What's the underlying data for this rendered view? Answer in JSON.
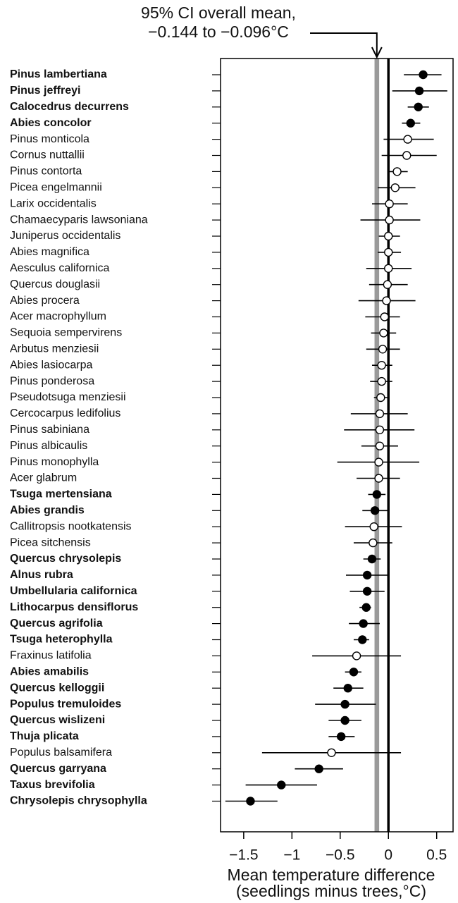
{
  "chart_data": {
    "type": "forest",
    "annotation": [
      "95% CI overall mean,",
      "−0.144 to −0.096°C"
    ],
    "overall_ci": [
      -0.144,
      -0.096
    ],
    "reference_x": 0,
    "xlabel": [
      "Mean temperature difference",
      "(seedlings minus trees,°C)"
    ],
    "categories": [
      "Pinus lambertiana",
      "Pinus jeffreyi",
      "Calocedrus decurrens",
      "Abies concolor",
      "Pinus monticola",
      "Cornus nuttallii",
      "Pinus contorta",
      "Picea engelmannii",
      "Larix occidentalis",
      "Chamaecyparis lawsoniana",
      "Juniperus occidentalis",
      "Abies magnifica",
      "Aesculus californica",
      "Quercus douglasii",
      "Abies procera",
      "Acer macrophyllum",
      "Sequoia sempervirens",
      "Arbutus menziesii",
      "Abies lasiocarpa",
      "Pinus ponderosa",
      "Pseudotsuga menziesii",
      "Cercocarpus ledifolius",
      "Pinus sabiniana",
      "Pinus albicaulis",
      "Pinus monophylla",
      "Acer glabrum",
      "Tsuga mertensiana",
      "Abies grandis",
      "Callitropsis nootkatensis",
      "Picea sitchensis",
      "Quercus chrysolepis",
      "Alnus rubra",
      "Umbellularia californica",
      "Lithocarpus densiflorus",
      "Quercus agrifolia",
      "Tsuga heterophylla",
      "Fraxinus latifolia",
      "Abies amabilis",
      "Quercus kelloggii",
      "Populus tremuloides",
      "Quercus wislizeni",
      "Thuja plicata",
      "Populus balsamifera",
      "Quercus garryana",
      "Taxus brevifolia",
      "Chrysolepis chrysophylla"
    ],
    "values": [
      0.36,
      0.32,
      0.31,
      0.23,
      0.2,
      0.19,
      0.09,
      0.07,
      0.01,
      0.01,
      0,
      0,
      0,
      -0.01,
      -0.02,
      -0.04,
      -0.05,
      -0.06,
      -0.07,
      -0.07,
      -0.08,
      -0.09,
      -0.09,
      -0.09,
      -0.1,
      -0.1,
      -0.12,
      -0.14,
      -0.15,
      -0.16,
      -0.17,
      -0.22,
      -0.22,
      -0.23,
      -0.26,
      -0.27,
      -0.33,
      -0.36,
      -0.42,
      -0.45,
      -0.45,
      -0.49,
      -0.59,
      -0.72,
      -1.11,
      -1.43
    ],
    "ci_low": [
      0.16,
      0.04,
      0.2,
      0.14,
      -0.05,
      -0.07,
      0.01,
      -0.11,
      -0.17,
      -0.29,
      -0.1,
      -0.11,
      -0.23,
      -0.2,
      -0.31,
      -0.24,
      -0.18,
      -0.23,
      -0.17,
      -0.19,
      -0.15,
      -0.39,
      -0.46,
      -0.28,
      -0.53,
      -0.33,
      -0.21,
      -0.27,
      -0.45,
      -0.36,
      -0.26,
      -0.44,
      -0.4,
      -0.3,
      -0.41,
      -0.36,
      -0.79,
      -0.45,
      -0.57,
      -0.76,
      -0.62,
      -0.62,
      -1.31,
      -0.97,
      -1.48,
      -1.69
    ],
    "ci_high": [
      0.55,
      0.61,
      0.42,
      0.33,
      0.47,
      0.5,
      0.2,
      0.28,
      0.2,
      0.33,
      0.12,
      0.13,
      0.24,
      0.2,
      0.28,
      0.12,
      0.08,
      0.12,
      0.04,
      0.04,
      -0.01,
      0.2,
      0.27,
      0.1,
      0.32,
      0.12,
      -0.03,
      -0.01,
      0.14,
      0.04,
      -0.08,
      -0.01,
      -0.04,
      -0.18,
      -0.09,
      -0.2,
      0.13,
      -0.28,
      -0.26,
      -0.13,
      -0.28,
      -0.35,
      0.13,
      -0.47,
      -0.74,
      -1.15
    ],
    "filled": [
      true,
      true,
      true,
      true,
      false,
      false,
      false,
      false,
      false,
      false,
      false,
      false,
      false,
      false,
      false,
      false,
      false,
      false,
      false,
      false,
      false,
      false,
      false,
      false,
      false,
      false,
      true,
      true,
      false,
      false,
      true,
      true,
      true,
      true,
      true,
      true,
      false,
      true,
      true,
      true,
      true,
      true,
      false,
      true,
      true,
      true
    ],
    "xlim": [
      -1.74,
      0.67
    ],
    "xticks": [
      {
        "value": -1.5,
        "label": "−1.5"
      },
      {
        "value": -1,
        "label": "−1"
      },
      {
        "value": -0.5,
        "label": "−0.5"
      },
      0,
      0.5
    ]
  }
}
